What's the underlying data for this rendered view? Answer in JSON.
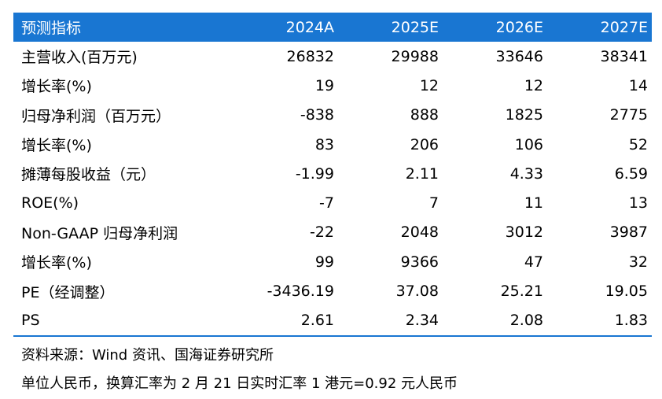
{
  "table": {
    "headers": [
      "预测指标",
      "2024A",
      "2025E",
      "2026E",
      "2027E"
    ],
    "rows": [
      [
        "主营收入(百万元)",
        "26832",
        "29988",
        "33646",
        "38341"
      ],
      [
        "增长率(%)",
        "19",
        "12",
        "12",
        "14"
      ],
      [
        "归母净利润（百万元）",
        "-838",
        "888",
        "1825",
        "2775"
      ],
      [
        "增长率(%)",
        "83",
        "206",
        "106",
        "52"
      ],
      [
        "摊薄每股收益（元）",
        "-1.99",
        "2.11",
        "4.33",
        "6.59"
      ],
      [
        "ROE(%)",
        "-7",
        "7",
        "11",
        "13"
      ],
      [
        "Non-GAAP 归母净利润",
        "-22",
        "2048",
        "3012",
        "3987"
      ],
      [
        "增长率(%)",
        "99",
        "9366",
        "47",
        "32"
      ],
      [
        "PE（经调整）",
        "-3436.19",
        "37.08",
        "25.21",
        "19.05"
      ],
      [
        "PS",
        "2.61",
        "2.34",
        "2.08",
        "1.83"
      ]
    ]
  },
  "notes": {
    "source": "资料来源：Wind 资讯、国海证券研究所",
    "unit": "单位人民币，换算汇率为 2 月 21 日实时汇率 1 港元=0.92 元人民币"
  },
  "colors": {
    "header_bg": "#1976d2",
    "header_text": "#ffffff",
    "rule": "#1976d2"
  }
}
